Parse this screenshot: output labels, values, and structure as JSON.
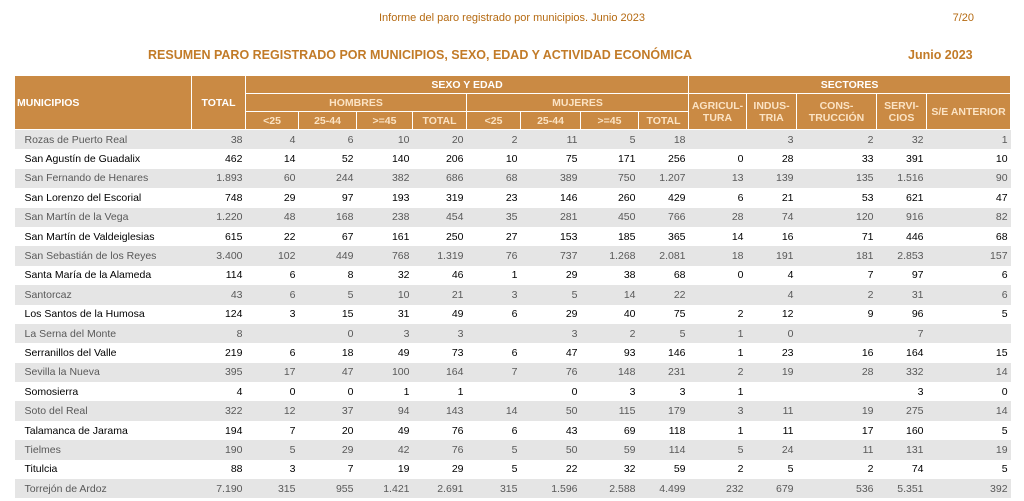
{
  "header": {
    "document_title": "Informe del paro registrado por municipios. Junio 2023",
    "page_number": "7/20"
  },
  "title": {
    "main": "RESUMEN PARO REGISTRADO POR MUNICIPIOS, SEXO, EDAD Y ACTIVIDAD ECONÓMICA",
    "date": "Junio 2023"
  },
  "table": {
    "headers": {
      "municipios": "MUNICIPIOS",
      "total": "TOTAL",
      "sexo_edad": "SEXO Y EDAD",
      "sectores": "SECTORES",
      "hombres": "HOMBRES",
      "mujeres": "MUJERES",
      "agricultura": [
        "AGRICUL-",
        "TURA"
      ],
      "industria": [
        "INDUS-",
        "TRIA"
      ],
      "construccion": [
        "CONS-",
        "TRUCCIÓN"
      ],
      "servicios": [
        "SERVI-",
        "CIOS"
      ],
      "se_anterior": "S/E ANTERIOR",
      "age_groups": [
        "<25",
        "25-44",
        ">=45",
        "TOTAL"
      ]
    },
    "rows": [
      [
        "Rozas de Puerto Real",
        "38",
        "4",
        "6",
        "10",
        "20",
        "2",
        "11",
        "5",
        "18",
        "",
        "3",
        "2",
        "32",
        "1"
      ],
      [
        "San Agustín de Guadalix",
        "462",
        "14",
        "52",
        "140",
        "206",
        "10",
        "75",
        "171",
        "256",
        "0",
        "28",
        "33",
        "391",
        "10"
      ],
      [
        "San Fernando de Henares",
        "1.893",
        "60",
        "244",
        "382",
        "686",
        "68",
        "389",
        "750",
        "1.207",
        "13",
        "139",
        "135",
        "1.516",
        "90"
      ],
      [
        "San Lorenzo del Escorial",
        "748",
        "29",
        "97",
        "193",
        "319",
        "23",
        "146",
        "260",
        "429",
        "6",
        "21",
        "53",
        "621",
        "47"
      ],
      [
        "San Martín de la Vega",
        "1.220",
        "48",
        "168",
        "238",
        "454",
        "35",
        "281",
        "450",
        "766",
        "28",
        "74",
        "120",
        "916",
        "82"
      ],
      [
        "San Martín de Valdeiglesias",
        "615",
        "22",
        "67",
        "161",
        "250",
        "27",
        "153",
        "185",
        "365",
        "14",
        "16",
        "71",
        "446",
        "68"
      ],
      [
        "San Sebastián de los Reyes",
        "3.400",
        "102",
        "449",
        "768",
        "1.319",
        "76",
        "737",
        "1.268",
        "2.081",
        "18",
        "191",
        "181",
        "2.853",
        "157"
      ],
      [
        "Santa María de la Alameda",
        "114",
        "6",
        "8",
        "32",
        "46",
        "1",
        "29",
        "38",
        "68",
        "0",
        "4",
        "7",
        "97",
        "6"
      ],
      [
        "Santorcaz",
        "43",
        "6",
        "5",
        "10",
        "21",
        "3",
        "5",
        "14",
        "22",
        "",
        "4",
        "2",
        "31",
        "6"
      ],
      [
        "Los Santos de la Humosa",
        "124",
        "3",
        "15",
        "31",
        "49",
        "6",
        "29",
        "40",
        "75",
        "2",
        "12",
        "9",
        "96",
        "5"
      ],
      [
        "La Serna del Monte",
        "8",
        "",
        "0",
        "3",
        "3",
        "",
        "3",
        "2",
        "5",
        "1",
        "0",
        "",
        "7",
        ""
      ],
      [
        "Serranillos del Valle",
        "219",
        "6",
        "18",
        "49",
        "73",
        "6",
        "47",
        "93",
        "146",
        "1",
        "23",
        "16",
        "164",
        "15"
      ],
      [
        "Sevilla la Nueva",
        "395",
        "17",
        "47",
        "100",
        "164",
        "7",
        "76",
        "148",
        "231",
        "2",
        "19",
        "28",
        "332",
        "14"
      ],
      [
        "Somosierra",
        "4",
        "0",
        "0",
        "1",
        "1",
        "",
        "0",
        "3",
        "3",
        "1",
        "",
        "",
        "3",
        "0"
      ],
      [
        "Soto del Real",
        "322",
        "12",
        "37",
        "94",
        "143",
        "14",
        "50",
        "115",
        "179",
        "3",
        "11",
        "19",
        "275",
        "14"
      ],
      [
        "Talamanca de Jarama",
        "194",
        "7",
        "20",
        "49",
        "76",
        "6",
        "43",
        "69",
        "118",
        "1",
        "11",
        "17",
        "160",
        "5"
      ],
      [
        "Tielmes",
        "190",
        "5",
        "29",
        "42",
        "76",
        "5",
        "50",
        "59",
        "114",
        "5",
        "24",
        "11",
        "131",
        "19"
      ],
      [
        "Titulcia",
        "88",
        "3",
        "7",
        "19",
        "29",
        "5",
        "22",
        "32",
        "59",
        "2",
        "5",
        "2",
        "74",
        "5"
      ],
      [
        "Torrejón de Ardoz",
        "7.190",
        "315",
        "955",
        "1.421",
        "2.691",
        "315",
        "1.596",
        "2.588",
        "4.499",
        "232",
        "679",
        "536",
        "5.351",
        "392"
      ]
    ]
  },
  "colors": {
    "header_bg": "#ca8a44",
    "title_color": "#c27b28",
    "odd_row_bg": "#e5e5e5"
  }
}
